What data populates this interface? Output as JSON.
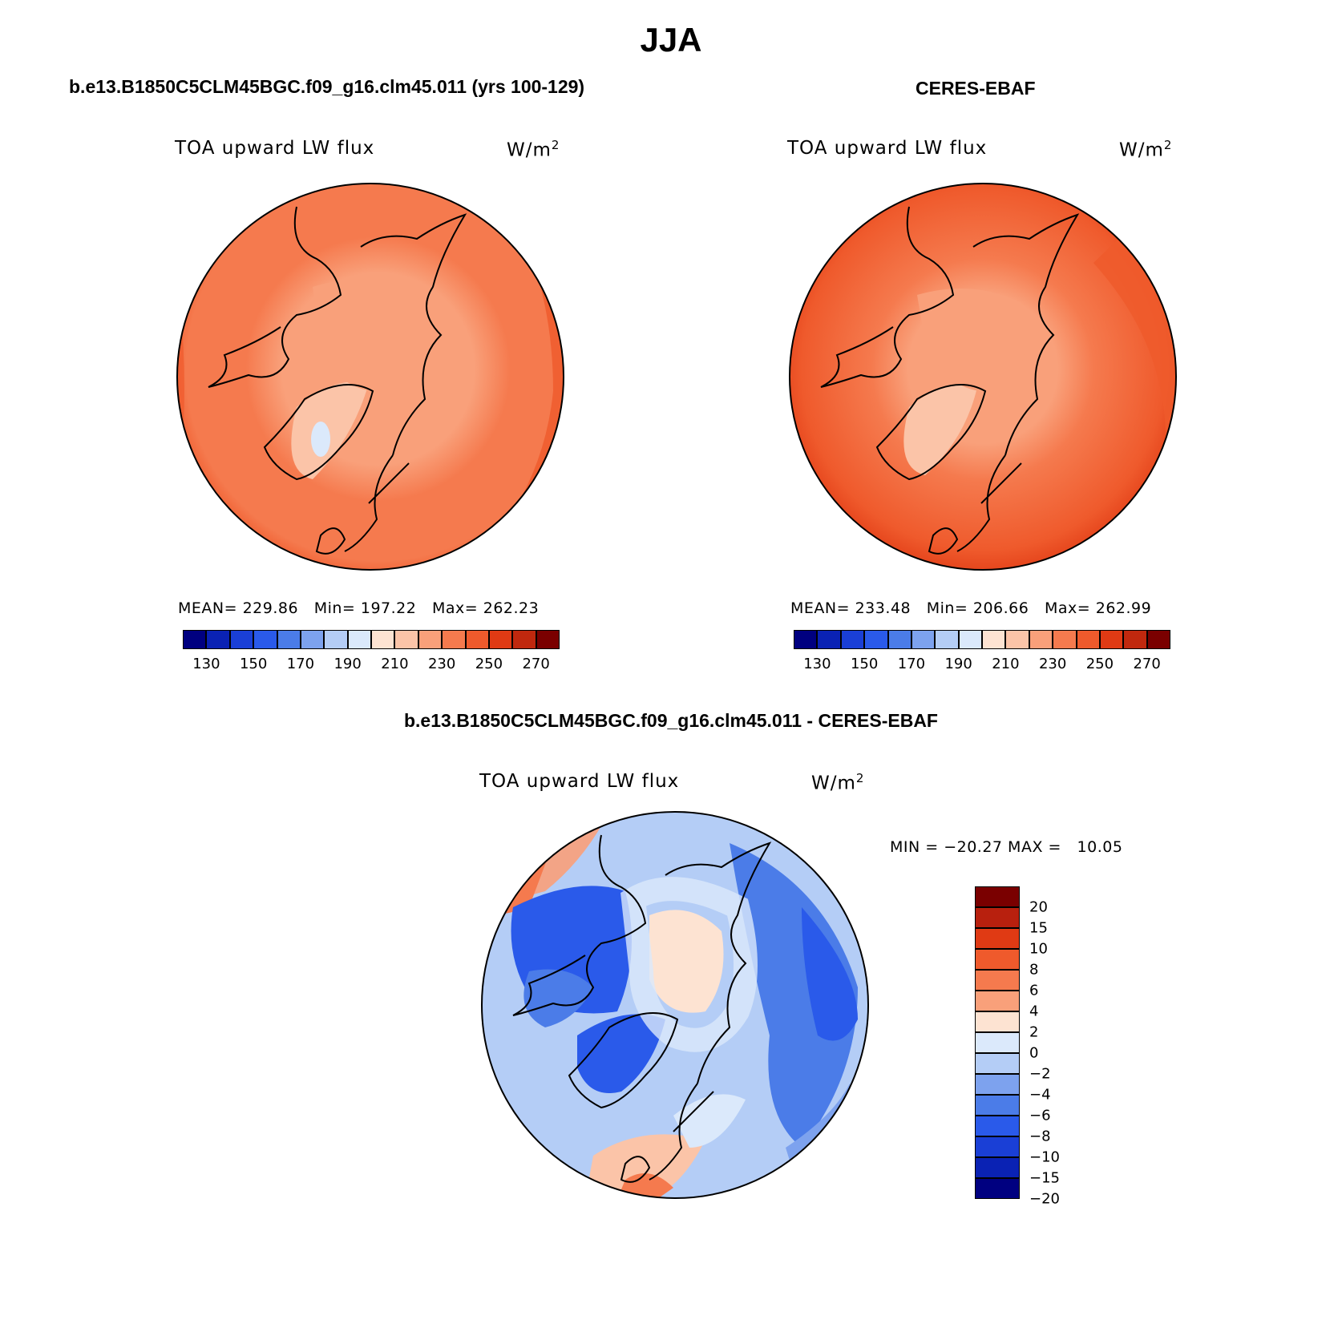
{
  "figure": {
    "title": "JJA"
  },
  "panels": [
    {
      "title": "b.e13.B1850C5CLM45BGC.f09_g16.clm45.011 (yrs 100-129)",
      "variable": "TOA upward LW flux",
      "units": "W/m",
      "units_exp": "2",
      "stats": {
        "mean_label": "MEAN=",
        "mean": "229.86",
        "min_label": "Min=",
        "min": "197.22",
        "max_label": "Max=",
        "max": "262.23"
      }
    },
    {
      "title": "CERES-EBAF",
      "variable": "TOA upward LW flux",
      "units": "W/m",
      "units_exp": "2",
      "stats": {
        "mean_label": "MEAN=",
        "mean": "233.48",
        "min_label": "Min=",
        "min": "206.66",
        "max_label": "Max=",
        "max": "262.99"
      }
    },
    {
      "title": "b.e13.B1850C5CLM45BGC.f09_g16.clm45.011 - CERES-EBAF",
      "variable": "TOA upward LW flux",
      "units": "W/m",
      "units_exp": "2",
      "minmax": "MIN = −20.27 MAX =   10.05"
    }
  ],
  "colorbar_abs": {
    "colors": [
      "#000080",
      "#0a22b4",
      "#1a3fd6",
      "#2a5aea",
      "#4b7ce8",
      "#7da2ee",
      "#b4cdf6",
      "#dbe9fb",
      "#fde3d2",
      "#fbc4a8",
      "#f9a07a",
      "#f57a4e",
      "#ef5a2c",
      "#e03a14",
      "#c0280e",
      "#7a0000"
    ],
    "labels": [
      "130",
      "150",
      "170",
      "190",
      "210",
      "230",
      "250",
      "270"
    ]
  },
  "colorbar_diff": {
    "colors": [
      "#7a0000",
      "#b8200e",
      "#e03a14",
      "#ef5a2c",
      "#f57a4e",
      "#f9a07a",
      "#fde3d2",
      "#dbe9fb",
      "#b4cdf6",
      "#7da2ee",
      "#4b7ce8",
      "#2a5aea",
      "#1a3fd6",
      "#0a22b4",
      "#000080"
    ],
    "labels": [
      "20",
      "15",
      "10",
      "8",
      "6",
      "4",
      "2",
      "0",
      "−2",
      "−4",
      "−6",
      "−8",
      "−10",
      "−15",
      "−20"
    ]
  }
}
